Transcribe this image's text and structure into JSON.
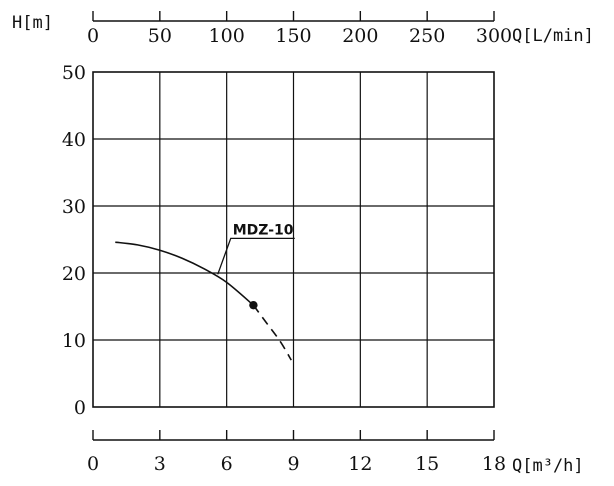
{
  "chart_data": {
    "type": "line",
    "title": "",
    "ylabel": "H[m]",
    "xlabel": "Q[m³/h]",
    "secondary_xlabel": "Q[L/min]",
    "xlim": [
      0,
      18
    ],
    "ylim": [
      0,
      50
    ],
    "secondary_xlim": [
      0,
      300
    ],
    "x_ticks": [
      "0",
      "3",
      "6",
      "9",
      "12",
      "15",
      "18"
    ],
    "y_ticks": [
      "0",
      "10",
      "20",
      "30",
      "40",
      "50"
    ],
    "secondary_x_ticks": [
      "0",
      "50",
      "100",
      "150",
      "200",
      "250",
      "300"
    ],
    "grid": true,
    "series": [
      {
        "name": "MDZ-10",
        "solid": [
          {
            "x": 1.0,
            "y": 24.6
          },
          {
            "x": 2.0,
            "y": 24.2
          },
          {
            "x": 3.0,
            "y": 23.4
          },
          {
            "x": 4.0,
            "y": 22.2
          },
          {
            "x": 5.0,
            "y": 20.6
          },
          {
            "x": 6.0,
            "y": 18.6
          },
          {
            "x": 7.2,
            "y": 15.2
          }
        ],
        "dashed": [
          {
            "x": 7.2,
            "y": 15.2
          },
          {
            "x": 7.8,
            "y": 12.5
          },
          {
            "x": 8.4,
            "y": 9.8
          },
          {
            "x": 8.9,
            "y": 7.0
          }
        ],
        "marker": {
          "x": 7.2,
          "y": 15.2
        },
        "label_point": {
          "x": 5.6,
          "y": 19.8
        }
      }
    ]
  }
}
